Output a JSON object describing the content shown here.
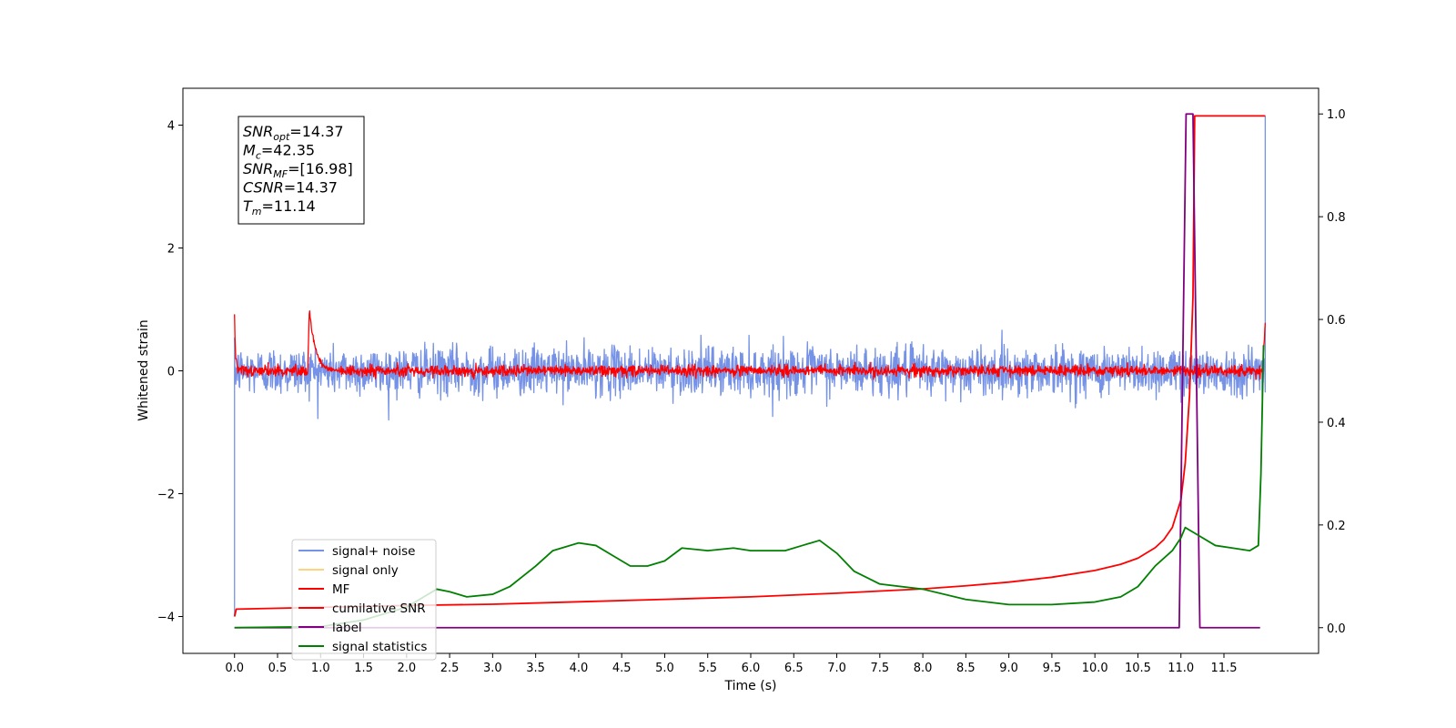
{
  "chart_data": {
    "type": "line",
    "xlabel": "Time (s)",
    "ylabel_left": "Whitened strain",
    "xlim": [
      -0.6,
      12.6
    ],
    "ylim_left": [
      -4.6,
      4.6
    ],
    "ylim_right": [
      -0.05,
      1.05
    ],
    "x_ticks": [
      0.0,
      0.5,
      1.0,
      1.5,
      2.0,
      2.5,
      3.0,
      3.5,
      4.0,
      4.5,
      5.0,
      5.5,
      6.0,
      6.5,
      7.0,
      7.5,
      8.0,
      8.5,
      9.0,
      9.5,
      10.0,
      10.5,
      11.0,
      11.5
    ],
    "x_tick_labels": [
      "0.0",
      "0.5",
      "1.0",
      "1.5",
      "2.0",
      "2.5",
      "3.0",
      "3.5",
      "4.0",
      "4.5",
      "5.0",
      "5.5",
      "6.0",
      "6.5",
      "7.0",
      "7.5",
      "8.0",
      "8.5",
      "9.0",
      "9.5",
      "10.0",
      "10.5",
      "11.0",
      "11.5"
    ],
    "y_left_ticks": [
      -4,
      -2,
      0,
      2,
      4
    ],
    "y_left_tick_labels": [
      "−4",
      "−2",
      "0",
      "2",
      "4"
    ],
    "y_right_ticks": [
      0.0,
      0.2,
      0.4,
      0.6,
      0.8,
      1.0
    ],
    "y_right_tick_labels": [
      "0.0",
      "0.2",
      "0.4",
      "0.6",
      "0.8",
      "1.0"
    ],
    "grid": false,
    "legend_position": "lower-left",
    "annotation": [
      {
        "var": "SNR",
        "sub": "opt",
        "value": "=14.37"
      },
      {
        "var": "M",
        "sub": "c",
        "value": "=42.35"
      },
      {
        "var": "SNR",
        "sub": "MF",
        "value": "=[16.98]"
      },
      {
        "var": "CSNR",
        "sub": "",
        "value": "=14.37"
      },
      {
        "var": "T",
        "sub": "m",
        "value": "=11.14"
      }
    ],
    "series": [
      {
        "name": "signal+ noise",
        "color": "#7592e6",
        "axis": "left",
        "kind": "noise",
        "x_range": [
          0.0,
          11.98
        ],
        "amplitude_typical": 0.35,
        "amplitude_peak": 0.8,
        "endpoints": [
          {
            "x": 0.0,
            "y": -4.0
          },
          {
            "x": 11.98,
            "y": 4.15
          }
        ]
      },
      {
        "name": "signal only",
        "color": "#ffd27f",
        "axis": "left",
        "kind": "legend_only"
      },
      {
        "name": "MF",
        "color": "#ff0000",
        "axis": "left",
        "kind": "noise",
        "x_range": [
          0.0,
          11.98
        ],
        "amplitude_typical": 0.08,
        "amplitude_peak": 0.2,
        "start_value": 0.87,
        "peaks": [
          {
            "x": 0.87,
            "y": 1.0
          }
        ],
        "end_value": 0.82
      },
      {
        "name": "cumilative SNR",
        "color": "#ff0000",
        "axis": "left",
        "kind": "line",
        "x": [
          0.0,
          0.02,
          1.0,
          2.0,
          3.0,
          4.0,
          5.0,
          6.0,
          7.0,
          8.0,
          8.5,
          9.0,
          9.5,
          10.0,
          10.3,
          10.5,
          10.7,
          10.8,
          10.9,
          11.0,
          11.05,
          11.1,
          11.14,
          11.16,
          11.3,
          11.98
        ],
        "y": [
          -4.0,
          -3.88,
          -3.85,
          -3.82,
          -3.8,
          -3.76,
          -3.72,
          -3.68,
          -3.62,
          -3.55,
          -3.5,
          -3.44,
          -3.36,
          -3.25,
          -3.15,
          -3.05,
          -2.88,
          -2.75,
          -2.55,
          -2.1,
          -1.5,
          -0.4,
          1.2,
          4.15,
          4.15,
          4.15
        ]
      },
      {
        "name": "label",
        "color": "#800080",
        "axis": "right",
        "kind": "line",
        "x": [
          0.0,
          10.98,
          11.06,
          11.14,
          11.22,
          11.92
        ],
        "y": [
          0.0,
          0.0,
          1.0,
          1.0,
          0.0,
          0.0
        ]
      },
      {
        "name": "signal statistics",
        "color": "#008000",
        "axis": "right",
        "kind": "line",
        "x": [
          0.0,
          0.5,
          1.0,
          1.5,
          2.0,
          2.2,
          2.35,
          2.5,
          2.7,
          3.0,
          3.2,
          3.5,
          3.7,
          4.0,
          4.2,
          4.4,
          4.6,
          4.8,
          5.0,
          5.2,
          5.5,
          5.8,
          6.0,
          6.2,
          6.4,
          6.6,
          6.8,
          7.0,
          7.2,
          7.5,
          8.0,
          8.5,
          9.0,
          9.5,
          10.0,
          10.3,
          10.5,
          10.7,
          10.9,
          11.0,
          11.05,
          11.1,
          11.2,
          11.4,
          11.6,
          11.8,
          11.9,
          11.93,
          11.96
        ],
        "y": [
          0.0,
          0.001,
          0.002,
          0.015,
          0.04,
          0.06,
          0.075,
          0.07,
          0.06,
          0.065,
          0.08,
          0.12,
          0.15,
          0.165,
          0.16,
          0.14,
          0.12,
          0.12,
          0.13,
          0.155,
          0.15,
          0.155,
          0.15,
          0.15,
          0.15,
          0.16,
          0.17,
          0.145,
          0.11,
          0.085,
          0.075,
          0.055,
          0.045,
          0.045,
          0.05,
          0.06,
          0.08,
          0.12,
          0.15,
          0.175,
          0.195,
          0.19,
          0.18,
          0.16,
          0.155,
          0.15,
          0.16,
          0.3,
          0.55
        ]
      }
    ]
  }
}
